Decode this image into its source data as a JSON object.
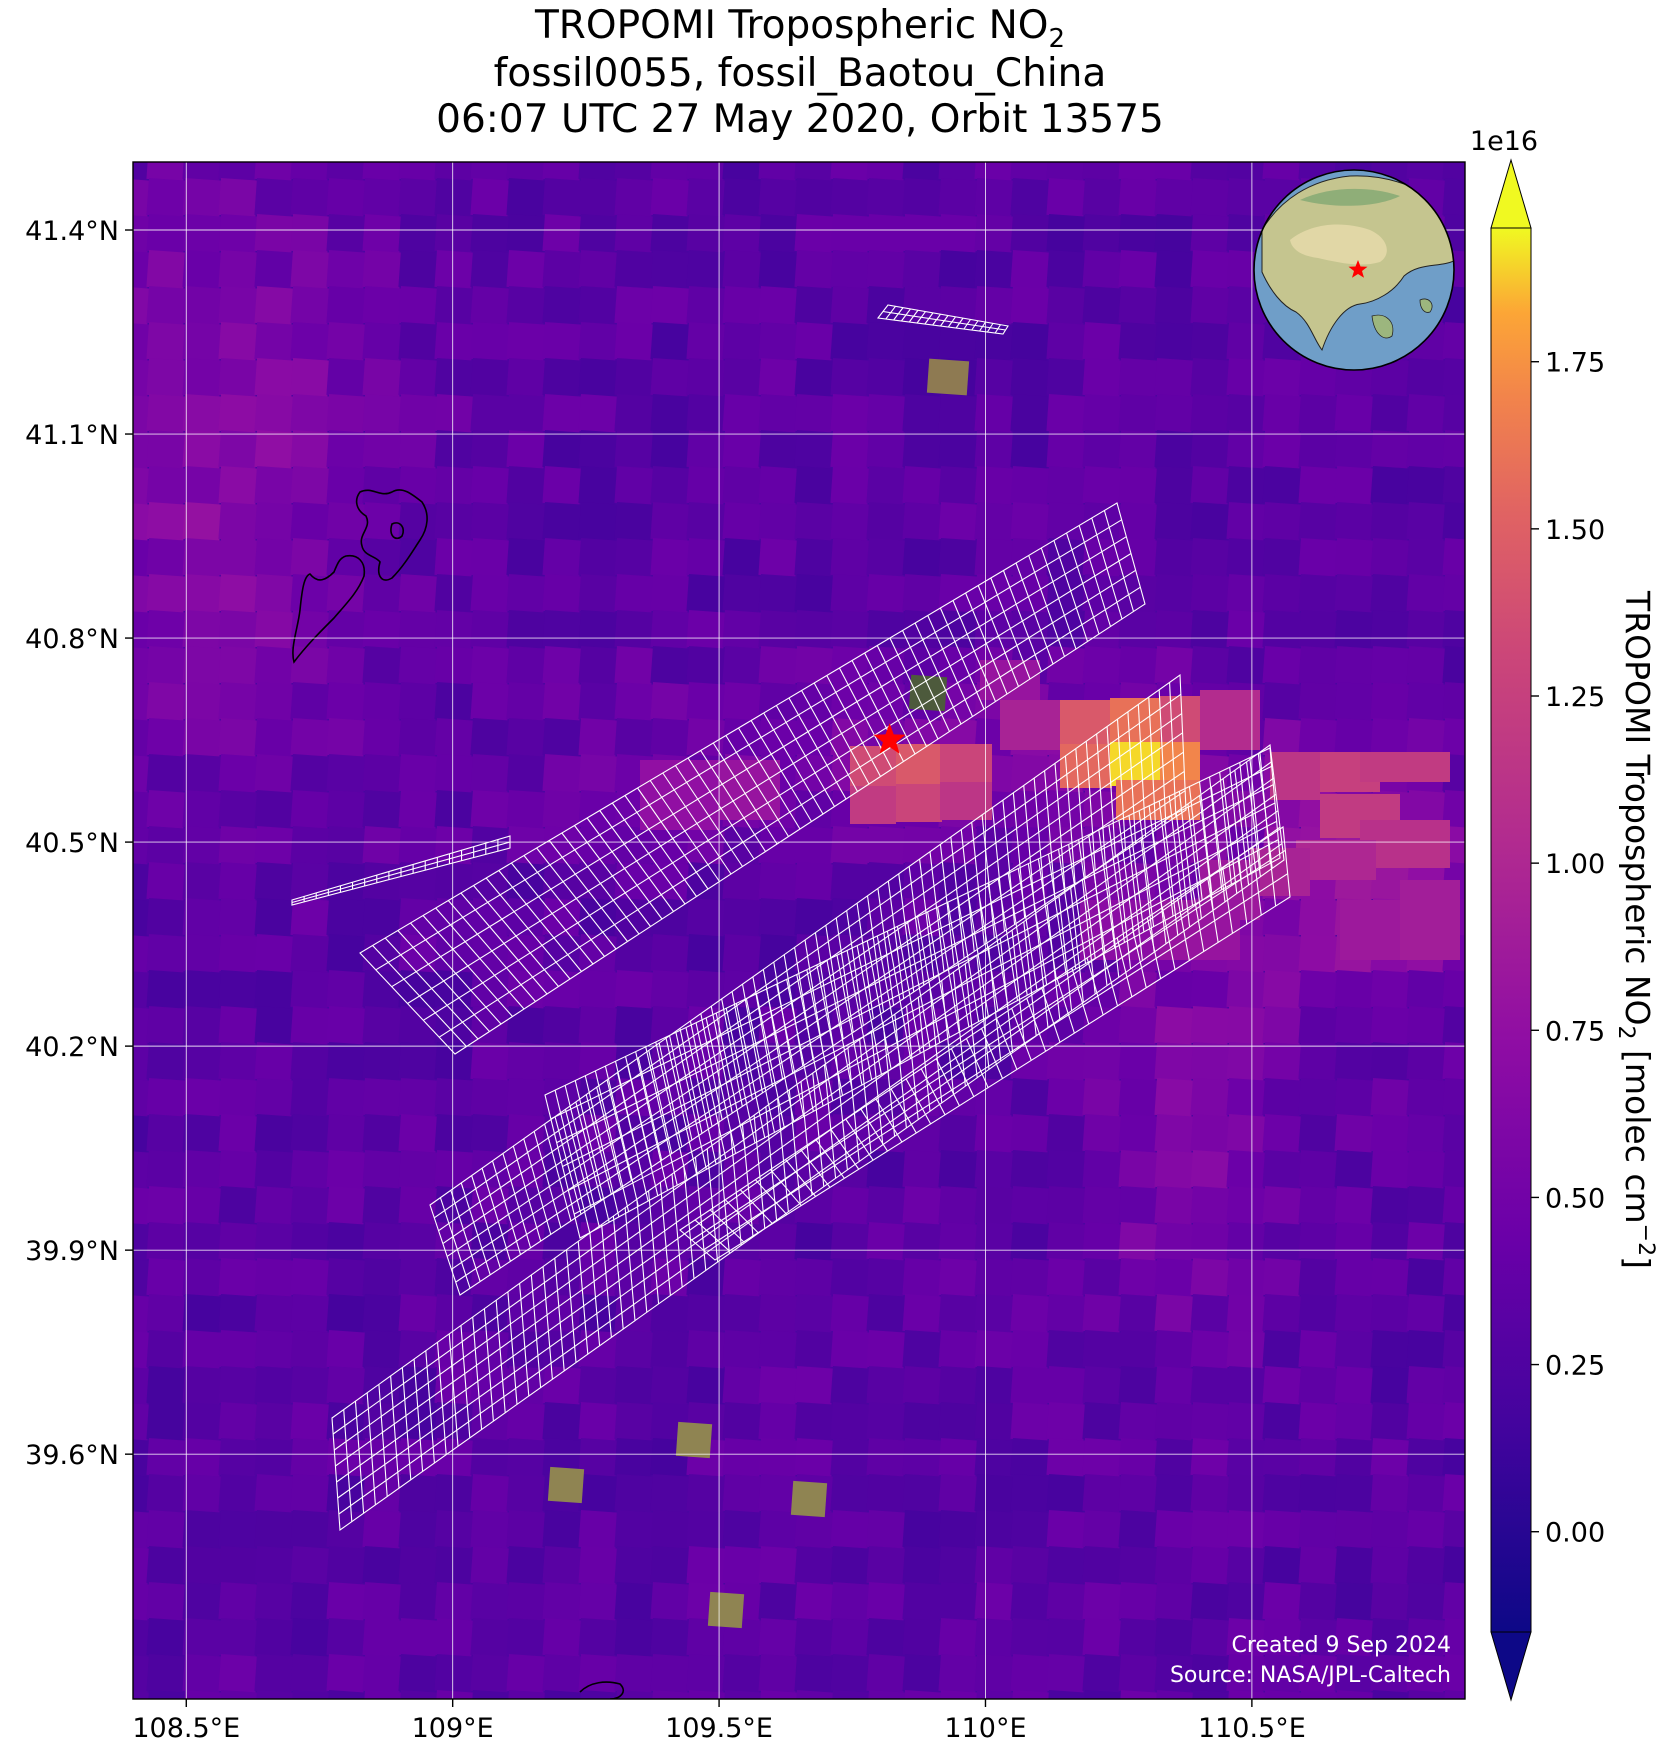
{
  "title": {
    "line1_prefix": "TROPOMI Tropospheric NO",
    "line1_sub": "2",
    "line2": "fossil0055, fossil_Baotou_China",
    "line3": "06:07 UTC 27 May 2020, Orbit 13575"
  },
  "map": {
    "lon_range": [
      108.4,
      110.9
    ],
    "lat_range": [
      39.24,
      41.5
    ],
    "x_ticks": [
      {
        "value": 108.5,
        "label": "108.5°E"
      },
      {
        "value": 109.0,
        "label": "109°E"
      },
      {
        "value": 109.5,
        "label": "109.5°E"
      },
      {
        "value": 110.0,
        "label": "110°E"
      },
      {
        "value": 110.5,
        "label": "110.5°E"
      }
    ],
    "y_ticks": [
      {
        "value": 41.4,
        "label": "41.4°N"
      },
      {
        "value": 41.1,
        "label": "41.1°N"
      },
      {
        "value": 40.8,
        "label": "40.8°N"
      },
      {
        "value": 40.5,
        "label": "40.5°N"
      },
      {
        "value": 40.2,
        "label": "40.2°N"
      },
      {
        "value": 39.9,
        "label": "39.9°N"
      },
      {
        "value": 39.6,
        "label": "39.6°N"
      }
    ],
    "gridlines": true,
    "site_marker": {
      "lon": 109.82,
      "lat": 40.65,
      "symbol": "star",
      "color": "#ff0000"
    },
    "inset": "globe-locator",
    "credits": {
      "created": "Created 9 Sep 2024",
      "source": "Source: NASA/JPL-Caltech"
    }
  },
  "colorbar": {
    "label_prefix": "TROPOMI Tropospheric NO",
    "label_sub": "2",
    "label_suffix": " [molec cm",
    "label_sup": "−2",
    "label_end": "]",
    "exponent": "1e16",
    "range": [
      -0.15,
      1.95
    ],
    "extend": "both",
    "colormap": "plasma",
    "ticks": [
      {
        "value": 0.0,
        "label": "0.00"
      },
      {
        "value": 0.25,
        "label": "0.25"
      },
      {
        "value": 0.5,
        "label": "0.50"
      },
      {
        "value": 0.75,
        "label": "0.75"
      },
      {
        "value": 1.0,
        "label": "1.00"
      },
      {
        "value": 1.25,
        "label": "1.25"
      },
      {
        "value": 1.5,
        "label": "1.50"
      },
      {
        "value": 1.75,
        "label": "1.75"
      }
    ]
  },
  "colors": {
    "low": "#0d0887",
    "mid": "#9c179e",
    "high": "#f0f921",
    "grid": "#ffffff",
    "footprint": "#ffffff",
    "marker": "#ff0000"
  }
}
